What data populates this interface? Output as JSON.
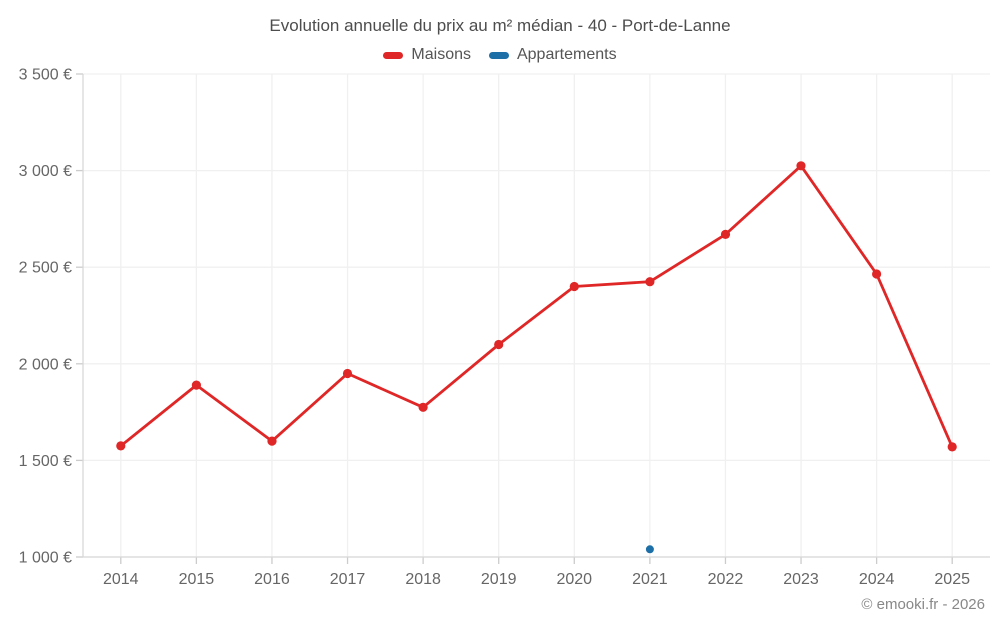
{
  "chart_data": {
    "type": "line",
    "title": "Evolution annuelle du prix au m² médian - 40 - Port-de-Lanne",
    "categories": [
      "2014",
      "2015",
      "2016",
      "2017",
      "2018",
      "2019",
      "2020",
      "2021",
      "2022",
      "2023",
      "2024",
      "2025"
    ],
    "series": [
      {
        "name": "Maisons",
        "color": "#e02727",
        "marker_radius": 4.6,
        "values": [
          1575,
          1890,
          1600,
          1950,
          1775,
          2100,
          2400,
          2425,
          2670,
          3025,
          2465,
          1570
        ]
      },
      {
        "name": "Appartements",
        "color": "#1d6fa8",
        "marker_radius": 4,
        "values": [
          null,
          null,
          null,
          null,
          null,
          null,
          null,
          1040,
          null,
          null,
          null,
          null
        ]
      }
    ],
    "xlabel": "",
    "ylabel": "",
    "ylim": [
      1000,
      3500
    ],
    "y_ticks": [
      {
        "value": 1000,
        "label": "1 000 €"
      },
      {
        "value": 1500,
        "label": "1 500 €"
      },
      {
        "value": 2000,
        "label": "2 000 €"
      },
      {
        "value": 2500,
        "label": "2 500 €"
      },
      {
        "value": 3000,
        "label": "3 000 €"
      },
      {
        "value": 3500,
        "label": "3 500 €"
      }
    ],
    "grid": true,
    "legend_position": "top"
  },
  "attribution": "© emooki.fr - 2026",
  "colors": {
    "background": "#ffffff",
    "grid": "#f0f0f0",
    "axis": "#d8d8d8",
    "tick": "#cccccc",
    "title_text": "#4d4d4d",
    "legend_text": "#555555",
    "axis_text": "#666666",
    "attribution_text": "#888888"
  }
}
